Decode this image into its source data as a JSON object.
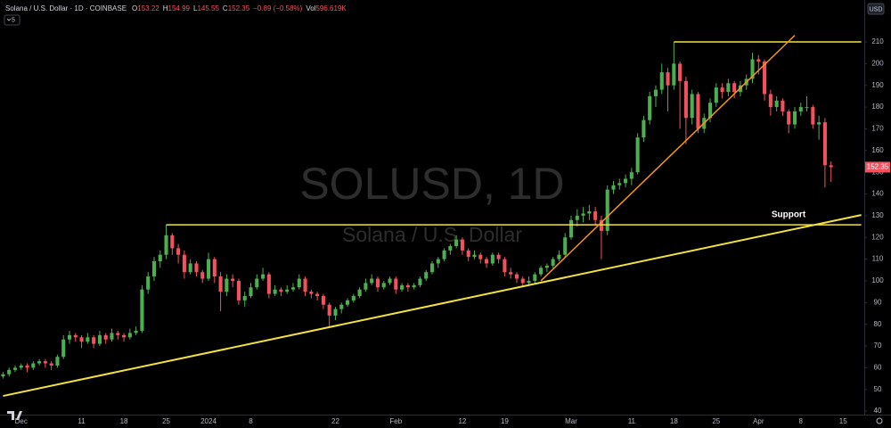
{
  "chart_data": {
    "type": "candlestick",
    "title": "SOLUSD, 1D",
    "subtitle": "Solana / U.S. Dollar",
    "header": {
      "symbol": "Solana / U.S. Dollar · 1D · COINBASE",
      "open_label": "O",
      "high_label": "H",
      "low_label": "L",
      "close_label": "C",
      "change_label": "−0.89 (−0.58%)",
      "volume_label": "Vol",
      "volume": "596.619K"
    },
    "currency": "USD",
    "indicator_count": 5,
    "annotation": "Support",
    "up_color": "#4cb050",
    "down_color": "#f4515f",
    "categories": [
      null,
      null,
      null,
      "Dec",
      null,
      null,
      null,
      null,
      null,
      null,
      null,
      null,
      null,
      "11",
      null,
      null,
      null,
      null,
      null,
      null,
      "18",
      null,
      null,
      null,
      null,
      null,
      null,
      "25",
      null,
      null,
      null,
      null,
      null,
      null,
      "2024",
      null,
      null,
      null,
      null,
      null,
      null,
      "8",
      null,
      null,
      null,
      null,
      null,
      null,
      null,
      null,
      null,
      null,
      null,
      null,
      null,
      "22",
      null,
      null,
      null,
      null,
      null,
      null,
      null,
      null,
      null,
      "Feb",
      null,
      null,
      null,
      null,
      null,
      null,
      null,
      null,
      null,
      null,
      "12",
      null,
      null,
      null,
      null,
      null,
      null,
      "19",
      null,
      null,
      null,
      null,
      null,
      null,
      null,
      null,
      null,
      null,
      "Mar",
      null,
      null,
      null,
      null,
      null,
      null,
      null,
      null,
      null,
      "11",
      null,
      null,
      null,
      null,
      null,
      null,
      "18",
      null,
      null,
      null,
      null,
      null,
      null,
      "25",
      null,
      null,
      null,
      null,
      null,
      null,
      "Apr",
      null,
      null,
      null,
      null,
      null,
      null,
      "8",
      null,
      null,
      null,
      null,
      null,
      null,
      "15",
      null,
      null,
      null
    ],
    "ohlc": [
      [
        56,
        58,
        55,
        57
      ],
      [
        57,
        60,
        56,
        59
      ],
      [
        59,
        61,
        58,
        60
      ],
      [
        60,
        62,
        59,
        61
      ],
      [
        61,
        62,
        58,
        60
      ],
      [
        60,
        63,
        59,
        62
      ],
      [
        62,
        64,
        61,
        63
      ],
      [
        63,
        64,
        60,
        62
      ],
      [
        62,
        63,
        59,
        61
      ],
      [
        61,
        66,
        60,
        65
      ],
      [
        65,
        75,
        64,
        73
      ],
      [
        73,
        77,
        71,
        75
      ],
      [
        75,
        76,
        72,
        74
      ],
      [
        74,
        75,
        69,
        72
      ],
      [
        72,
        76,
        71,
        74
      ],
      [
        74,
        75,
        69,
        71
      ],
      [
        71,
        77,
        70,
        75
      ],
      [
        75,
        76,
        71,
        73
      ],
      [
        73,
        78,
        72,
        76
      ],
      [
        76,
        77,
        73,
        75
      ],
      [
        75,
        76,
        72,
        74
      ],
      [
        74,
        78,
        73,
        76
      ],
      [
        76,
        79,
        75,
        77
      ],
      [
        77,
        98,
        76,
        96
      ],
      [
        96,
        104,
        94,
        102
      ],
      [
        102,
        111,
        100,
        109
      ],
      [
        109,
        114,
        106,
        112
      ],
      [
        112,
        125.8,
        110,
        121
      ],
      [
        121,
        122,
        112,
        115
      ],
      [
        115,
        117,
        108,
        112
      ],
      [
        112,
        114,
        101,
        104
      ],
      [
        104,
        110,
        103,
        108
      ],
      [
        108,
        109,
        102,
        104
      ],
      [
        104,
        105,
        99,
        101
      ],
      [
        101,
        113,
        100,
        110
      ],
      [
        110,
        111,
        99,
        102
      ],
      [
        102,
        104,
        86,
        95
      ],
      [
        95,
        103,
        93,
        101
      ],
      [
        101,
        103,
        97,
        100
      ],
      [
        100,
        101,
        89,
        91
      ],
      [
        91,
        95,
        88,
        93
      ],
      [
        93,
        99,
        92,
        97
      ],
      [
        97,
        103,
        96,
        101
      ],
      [
        101,
        106,
        100,
        103
      ],
      [
        103,
        104,
        92,
        94
      ],
      [
        94,
        98,
        93,
        96
      ],
      [
        96,
        97,
        93,
        95
      ],
      [
        95,
        98,
        94,
        96
      ],
      [
        96,
        99,
        95,
        97
      ],
      [
        97,
        103,
        96,
        101
      ],
      [
        101,
        102,
        93,
        95
      ],
      [
        95,
        96,
        92,
        94
      ],
      [
        94,
        95,
        91,
        93
      ],
      [
        93,
        94,
        87,
        89
      ],
      [
        89,
        90,
        79,
        84
      ],
      [
        84,
        88,
        82,
        87
      ],
      [
        87,
        90,
        85,
        89
      ],
      [
        89,
        92,
        88,
        91
      ],
      [
        91,
        94,
        90,
        93
      ],
      [
        93,
        97,
        92,
        96
      ],
      [
        96,
        101,
        95,
        99
      ],
      [
        99,
        103,
        98,
        101
      ],
      [
        101,
        102,
        95,
        97
      ],
      [
        97,
        100,
        96,
        99
      ],
      [
        99,
        102,
        98,
        101
      ],
      [
        101,
        102,
        94,
        96
      ],
      [
        96,
        99,
        95,
        98
      ],
      [
        98,
        99,
        95,
        97
      ],
      [
        97,
        99,
        96,
        98
      ],
      [
        98,
        102,
        97,
        101
      ],
      [
        101,
        105,
        100,
        104
      ],
      [
        104,
        109,
        103,
        108
      ],
      [
        108,
        111,
        106,
        110
      ],
      [
        110,
        115,
        109,
        114
      ],
      [
        114,
        117,
        112,
        116
      ],
      [
        116,
        121,
        115,
        119
      ],
      [
        119,
        120,
        112,
        114
      ],
      [
        114,
        115,
        109,
        111
      ],
      [
        111,
        114,
        110,
        112
      ],
      [
        112,
        113,
        108,
        110
      ],
      [
        110,
        111,
        106,
        108
      ],
      [
        108,
        113,
        107,
        112
      ],
      [
        112,
        113,
        108,
        110
      ],
      [
        110,
        111,
        102,
        104
      ],
      [
        104,
        106,
        101,
        103
      ],
      [
        103,
        104,
        99,
        101
      ],
      [
        101,
        102,
        97,
        99
      ],
      [
        99,
        102,
        98,
        100
      ],
      [
        100,
        104,
        99,
        103
      ],
      [
        103,
        107,
        102,
        106
      ],
      [
        106,
        108,
        104,
        107
      ],
      [
        107,
        111,
        106,
        110
      ],
      [
        110,
        114,
        109,
        112
      ],
      [
        112,
        122,
        111,
        120
      ],
      [
        120,
        130,
        119,
        128
      ],
      [
        128,
        133,
        125,
        130
      ],
      [
        130,
        134,
        127,
        131
      ],
      [
        131,
        135,
        128,
        132
      ],
      [
        132,
        134,
        126,
        128
      ],
      [
        128,
        130,
        110,
        123
      ],
      [
        123,
        144,
        121,
        142
      ],
      [
        142,
        146,
        140,
        144
      ],
      [
        144,
        147,
        142,
        145
      ],
      [
        145,
        149,
        143,
        147
      ],
      [
        147,
        152,
        144,
        150
      ],
      [
        150,
        168,
        149,
        166
      ],
      [
        166,
        176,
        164,
        174
      ],
      [
        174,
        187,
        172,
        185
      ],
      [
        185,
        190,
        180,
        188
      ],
      [
        188,
        200,
        186,
        196
      ],
      [
        196,
        198,
        178,
        190
      ],
      [
        190,
        210,
        188,
        200
      ],
      [
        200,
        201,
        170,
        192
      ],
      [
        192,
        194,
        163,
        175
      ],
      [
        175,
        188,
        172,
        186
      ],
      [
        186,
        187,
        168,
        170
      ],
      [
        170,
        177,
        168,
        175
      ],
      [
        175,
        184,
        173,
        182
      ],
      [
        182,
        191,
        180,
        189
      ],
      [
        189,
        191,
        184,
        187
      ],
      [
        187,
        193,
        185,
        191
      ],
      [
        191,
        192,
        184,
        187
      ],
      [
        187,
        192,
        185,
        190
      ],
      [
        190,
        195,
        188,
        193
      ],
      [
        193,
        205,
        191,
        202
      ],
      [
        202,
        204,
        195,
        201
      ],
      [
        201,
        202,
        183,
        186
      ],
      [
        186,
        188,
        176,
        180
      ],
      [
        180,
        185,
        178,
        183
      ],
      [
        183,
        184,
        176,
        178
      ],
      [
        178,
        179,
        168,
        172
      ],
      [
        172,
        180,
        170,
        178
      ],
      [
        178,
        182,
        176,
        180
      ],
      [
        180,
        185,
        178,
        180
      ],
      [
        180,
        181,
        170,
        172
      ],
      [
        172,
        176,
        165,
        173
      ],
      [
        173,
        175,
        143,
        153.24
      ],
      [
        153.22,
        154.99,
        145.55,
        152.35
      ],
      null,
      null,
      null,
      null,
      null
    ],
    "ylim": [
      38.4,
      229.3
    ],
    "yticks": [
      40,
      50,
      60,
      70,
      80,
      90,
      100,
      110,
      120,
      130,
      140,
      150,
      160,
      170,
      180,
      190,
      200,
      210
    ],
    "grid": false,
    "lines": [
      {
        "color": "#f2e23f",
        "start": 0,
        "end": 142,
        "values": [
          47,
          130.3
        ]
      },
      {
        "color": "#f2e23f",
        "start": 27,
        "end": 142,
        "values": [
          125.8,
          125.8
        ]
      },
      {
        "color": "#f2e23f",
        "start": 111,
        "end": 142,
        "values": [
          210,
          210
        ]
      },
      {
        "color": "#f7931e",
        "start": 89,
        "end": 131,
        "values": [
          100,
          213
        ]
      }
    ]
  }
}
